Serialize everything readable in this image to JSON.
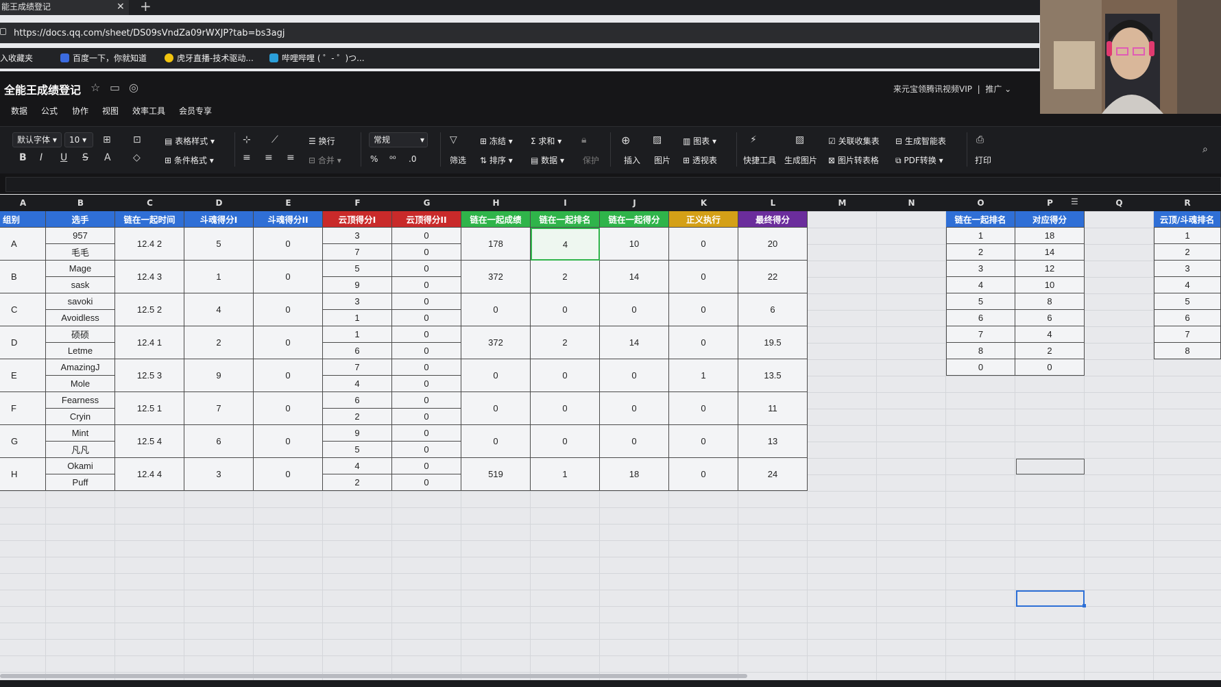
{
  "browser": {
    "tab_title": "能王成绩登记",
    "tab_close": "✕",
    "new_tab": "+",
    "url": "https://docs.qq.com/sheet/DS09sVndZa09rWXJP?tab=bs3agj",
    "bookmarks": [
      "入收藏夹",
      "百度一下，你就知道",
      "虎牙直播-技术驱动...",
      "哔哩哔哩 ( ゜- ゜)つ..."
    ]
  },
  "app": {
    "doc_title": "全能王成绩登记",
    "vip_text": "来元宝领腾讯视频VIP",
    "promo": "推广",
    "menu": [
      "数据",
      "公式",
      "协作",
      "视图",
      "效率工具",
      "会员专享"
    ]
  },
  "toolbar": {
    "font": "默认字体",
    "size": "10",
    "table_style": "表格样式",
    "wrap": "换行",
    "cond_format": "条件格式",
    "merge": "合并",
    "number_format": "常规",
    "filter": "筛选",
    "freeze": "冻结",
    "sort": "排序",
    "sum": "求和",
    "data": "数据",
    "protect": "保护",
    "insert": "插入",
    "image": "图片",
    "chart": "图表",
    "pivot": "透视表",
    "quick_tools": "快捷工具",
    "gen_image": "生成图片",
    "link_form": "关联收集表",
    "smart_table": "生成智能表",
    "img_to_table": "图片转表格",
    "pdf": "PDF转换",
    "print": "打印",
    "percent": "%",
    "thousands": "⁰⁰",
    "decimal": ".0"
  },
  "columns": [
    "A",
    "B",
    "C",
    "D",
    "E",
    "F",
    "G",
    "H",
    "I",
    "J",
    "K",
    "L",
    "M",
    "N",
    "O",
    "P",
    "Q",
    "R"
  ],
  "headers": {
    "A": "组别",
    "B": "选手",
    "C": "链在一起时间",
    "D": "斗魂得分I",
    "E": "斗魂得分II",
    "F": "云顶得分I",
    "G": "云顶得分II",
    "H": "链在一起成绩",
    "I": "链在一起排名",
    "J": "链在一起得分",
    "K": "正义执行",
    "L": "最终得分",
    "O": "链在一起排名",
    "P": "对应得分",
    "R": "云顶/斗魂排名"
  },
  "header_colors": {
    "blue": "#2f6fd6",
    "red": "#c92a2a",
    "green": "#2fb44a",
    "yellow": "#d4a017",
    "purple": "#6b2d9c"
  },
  "groups": [
    {
      "group": "A",
      "players": [
        "957",
        "毛毛"
      ],
      "time": "12.4 2",
      "d1": "5",
      "d2": "0",
      "f1": [
        "3",
        "7"
      ],
      "g2": [
        "0",
        "0"
      ],
      "h": "178",
      "rank": "4",
      "score": "10",
      "justice": "0",
      "final": "20"
    },
    {
      "group": "B",
      "players": [
        "Mage",
        "sask"
      ],
      "time": "12.4 3",
      "d1": "1",
      "d2": "0",
      "f1": [
        "5",
        "9"
      ],
      "g2": [
        "0",
        "0"
      ],
      "h": "372",
      "rank": "2",
      "score": "14",
      "justice": "0",
      "final": "22"
    },
    {
      "group": "C",
      "players": [
        "savoki",
        "Avoidless"
      ],
      "time": "12.5 2",
      "d1": "4",
      "d2": "0",
      "f1": [
        "3",
        "1"
      ],
      "g2": [
        "0",
        "0"
      ],
      "h": "0",
      "rank": "0",
      "score": "0",
      "justice": "0",
      "final": "6"
    },
    {
      "group": "D",
      "players": [
        "硕硕",
        "Letme"
      ],
      "time": "12.4 1",
      "d1": "2",
      "d2": "0",
      "f1": [
        "1",
        "6"
      ],
      "g2": [
        "0",
        "0"
      ],
      "h": "372",
      "rank": "2",
      "score": "14",
      "justice": "0",
      "final": "19.5"
    },
    {
      "group": "E",
      "players": [
        "AmazingJ",
        "Mole"
      ],
      "time": "12.5 3",
      "d1": "9",
      "d2": "0",
      "f1": [
        "7",
        "4"
      ],
      "g2": [
        "0",
        "0"
      ],
      "h": "0",
      "rank": "0",
      "score": "0",
      "justice": "1",
      "final": "13.5"
    },
    {
      "group": "F",
      "players": [
        "Fearness",
        "Cryin"
      ],
      "time": "12.5 1",
      "d1": "7",
      "d2": "0",
      "f1": [
        "6",
        "2"
      ],
      "g2": [
        "0",
        "0"
      ],
      "h": "0",
      "rank": "0",
      "score": "0",
      "justice": "0",
      "final": "11"
    },
    {
      "group": "G",
      "players": [
        "Mint",
        "凡凡"
      ],
      "time": "12.5 4",
      "d1": "6",
      "d2": "0",
      "f1": [
        "9",
        "5"
      ],
      "g2": [
        "0",
        "0"
      ],
      "h": "0",
      "rank": "0",
      "score": "0",
      "justice": "0",
      "final": "13"
    },
    {
      "group": "H",
      "players": [
        "Okami",
        "Puff"
      ],
      "time": "12.4 4",
      "d1": "3",
      "d2": "0",
      "f1": [
        "4",
        "2"
      ],
      "g2": [
        "0",
        "0"
      ],
      "h": "519",
      "rank": "1",
      "score": "18",
      "justice": "0",
      "final": "24"
    }
  ],
  "lookup": {
    "rank": [
      "1",
      "2",
      "3",
      "4",
      "5",
      "6",
      "7",
      "8",
      "0"
    ],
    "score": [
      "18",
      "14",
      "12",
      "10",
      "8",
      "6",
      "4",
      "2",
      "0"
    ]
  },
  "rank_r": [
    "1",
    "2",
    "3",
    "4",
    "5",
    "6",
    "7",
    "8"
  ]
}
